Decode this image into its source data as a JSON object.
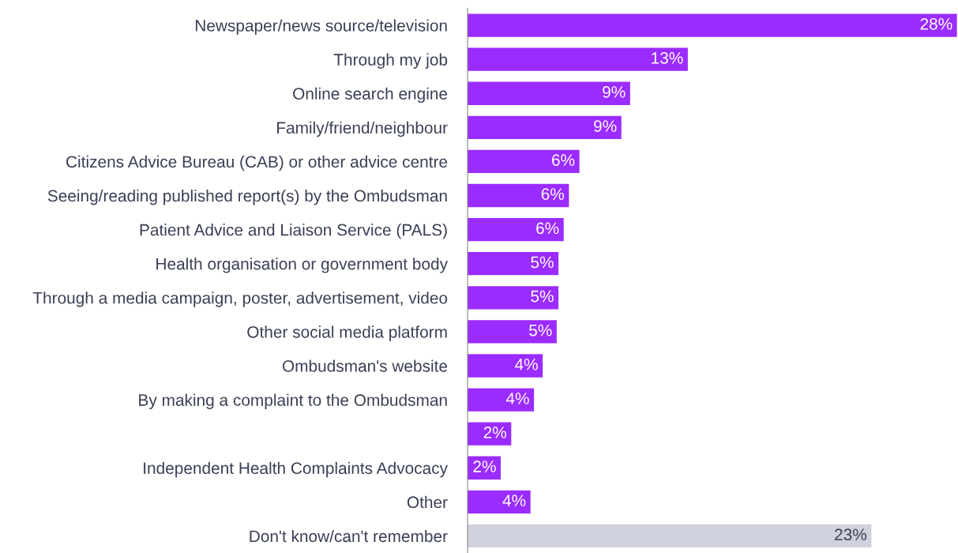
{
  "chart_data": {
    "type": "bar",
    "orientation": "horizontal",
    "categories": [
      "Newspaper/news source/television",
      "Through my job",
      "Online search engine",
      "Family/friend/neighbour",
      "Citizens Advice Bureau (CAB) or other advice centre",
      "Seeing/reading published report(s) by the Ombudsman",
      "Patient Advice and Liaison Service (PALS)",
      "Health organisation or government body",
      "Through a media campaign, poster, advertisement, video",
      "Other social media platform",
      "Ombudsman's website",
      "By making a complaint to the Ombudsman",
      null,
      "Independent Health Complaints Advocacy",
      "Other",
      "Don't know/can't remember"
    ],
    "values": [
      28.0,
      12.6,
      9.3,
      8.8,
      6.4,
      5.8,
      5.5,
      5.2,
      5.2,
      5.1,
      4.3,
      3.8,
      2.5,
      1.9,
      3.6,
      23.1
    ],
    "value_labels": [
      "28%",
      "13%",
      "9%",
      "9%",
      "6%",
      "6%",
      "6%",
      "5%",
      "5%",
      "5%",
      "4%",
      "4%",
      "2%",
      "2%",
      "4%",
      "23%"
    ],
    "colors": [
      "#9b2cff",
      "#9b2cff",
      "#9b2cff",
      "#9b2cff",
      "#9b2cff",
      "#9b2cff",
      "#9b2cff",
      "#9b2cff",
      "#9b2cff",
      "#9b2cff",
      "#9b2cff",
      "#9b2cff",
      "#9b2cff",
      "#9b2cff",
      "#9b2cff",
      "#cfd2dd"
    ],
    "grid": false,
    "legend": false
  }
}
